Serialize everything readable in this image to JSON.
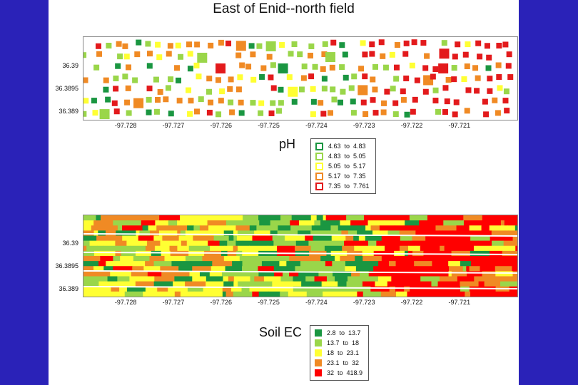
{
  "slide": {
    "title": "East of Enid--north field"
  },
  "chart_data": [
    {
      "type": "scatter",
      "title": "East of Enid--north field",
      "legend_title": "pH",
      "xlim": [
        -97.7289,
        -97.7198
      ],
      "ylim": [
        36.38885,
        36.39065
      ],
      "x_ticks": [
        "-97.728",
        "-97.727",
        "-97.726",
        "-97.725",
        "-97.724",
        "-97.723",
        "-97.722",
        "-97.721"
      ],
      "y_ticks": [
        "36.39",
        "36.3895",
        "36.389"
      ],
      "classes": [
        {
          "label": "4.63  to  4.83",
          "color": "#1a9641"
        },
        {
          "label": "4.83  to  5.05",
          "color": "#9ad64a"
        },
        {
          "label": "5.05  to  5.17",
          "color": "#ffff33"
        },
        {
          "label": "5.17  to  7.35",
          "color": "#f08a24"
        },
        {
          "label": "7.35  to  7.761",
          "color": "#e31a1c"
        }
      ],
      "class_distribution_by_longitude": [
        {
          "x_from": -97.7289,
          "x_to": -97.7255,
          "weights": [
            0.1,
            0.28,
            0.22,
            0.3,
            0.1
          ]
        },
        {
          "x_from": -97.7255,
          "x_to": -97.7232,
          "weights": [
            0.22,
            0.4,
            0.14,
            0.14,
            0.1
          ]
        },
        {
          "x_from": -97.7232,
          "x_to": -97.7198,
          "weights": [
            0.05,
            0.12,
            0.1,
            0.18,
            0.55
          ]
        }
      ]
    },
    {
      "type": "heatmap",
      "legend_title": "Soil EC",
      "xlim": [
        -97.7289,
        -97.7198
      ],
      "ylim": [
        36.38885,
        36.39065
      ],
      "x_ticks": [
        "-97.728",
        "-97.727",
        "-97.726",
        "-97.725",
        "-97.724",
        "-97.723",
        "-97.722",
        "-97.721"
      ],
      "y_ticks": [
        "36.39",
        "36.3895",
        "36.389"
      ],
      "classes": [
        {
          "label": "2.8  to  13.7",
          "color": "#1a9641"
        },
        {
          "label": "13.7  to  18",
          "color": "#9ad64a"
        },
        {
          "label": "18  to  23.1",
          "color": "#ffff33"
        },
        {
          "label": "23.1  to  32",
          "color": "#f08a24"
        },
        {
          "label": "32  to  418.9",
          "color": "#ff0000"
        }
      ],
      "class_distribution_by_longitude": [
        {
          "x_from": -97.7289,
          "x_to": -97.7255,
          "weights": [
            0.12,
            0.18,
            0.3,
            0.34,
            0.06
          ]
        },
        {
          "x_from": -97.7255,
          "x_to": -97.7228,
          "weights": [
            0.26,
            0.3,
            0.24,
            0.1,
            0.1
          ]
        },
        {
          "x_from": -97.7228,
          "x_to": -97.7198,
          "weights": [
            0.04,
            0.08,
            0.1,
            0.18,
            0.6
          ]
        }
      ]
    }
  ]
}
